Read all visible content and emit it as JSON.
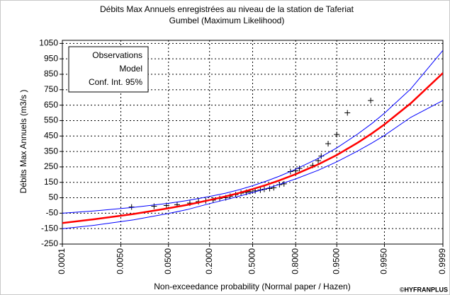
{
  "chart_data": {
    "type": "line",
    "title": "Débits Max Annuels enregistrées au niveau de la station de Taferiat",
    "subtitle": "Gumbel (Maximum Likelihood)",
    "x_label": "Non-exceedance probability (Normal paper / Hazen)",
    "y_label": "Débits Max Annuels (m3/s )",
    "credit": "©HYFRANPLUS",
    "x_scale": "normal-probability",
    "xlim": [
      0.0001,
      0.9999
    ],
    "xticks": [
      {
        "value": 0.0001,
        "label": "0.0001"
      },
      {
        "value": 0.005,
        "label": "0.0050"
      },
      {
        "value": 0.05,
        "label": "0.0500"
      },
      {
        "value": 0.2,
        "label": "0.2000"
      },
      {
        "value": 0.5,
        "label": "0.5000"
      },
      {
        "value": 0.8,
        "label": "0.8000"
      },
      {
        "value": 0.95,
        "label": "0.9500"
      },
      {
        "value": 0.995,
        "label": "0.9950"
      },
      {
        "value": 0.9999,
        "label": "0.9999"
      }
    ],
    "ylim": [
      -250,
      1070
    ],
    "yticks": [
      1050,
      950,
      850,
      750,
      650,
      550,
      450,
      350,
      250,
      150,
      50,
      -50,
      -150,
      -250
    ],
    "grid": true,
    "legend": "upper left",
    "x": [
      0.0001,
      0.001,
      0.01,
      0.05,
      0.1,
      0.2,
      0.3,
      0.4,
      0.5,
      0.6,
      0.7,
      0.8,
      0.9,
      0.95,
      0.98,
      0.99,
      0.995,
      0.999,
      0.9999
    ],
    "series": [
      {
        "name": "Observations",
        "color": "#000000",
        "marker": "plus",
        "x": [
          0.009,
          0.027,
          0.046,
          0.07,
          0.11,
          0.145,
          0.18,
          0.22,
          0.26,
          0.3,
          0.33,
          0.37,
          0.41,
          0.45,
          0.48,
          0.52,
          0.56,
          0.59,
          0.63,
          0.66,
          0.7,
          0.73,
          0.77,
          0.8,
          0.82,
          0.88,
          0.9,
          0.91,
          0.93,
          0.95,
          0.968,
          0.9895
        ],
        "values": [
          -10,
          -5,
          0,
          5,
          15,
          25,
          30,
          35,
          45,
          50,
          60,
          70,
          80,
          85,
          90,
          95,
          100,
          105,
          110,
          115,
          135,
          140,
          220,
          225,
          240,
          260,
          290,
          320,
          400,
          460,
          600,
          680
        ]
      },
      {
        "name": "Model",
        "color": "#ff0000",
        "marker": "line",
        "values": [
          -114,
          -89,
          -55,
          -18,
          4,
          35,
          59,
          82,
          106,
          132,
          163,
          203,
          266,
          327,
          407,
          466,
          525,
          662,
          858
        ]
      },
      {
        "name": "Conf. Int. 95%",
        "color": "#0000ff",
        "marker": "band",
        "upper": [
          -50,
          -35,
          -12,
          14,
          32,
          58,
          80,
          103,
          128,
          156,
          190,
          235,
          305,
          373,
          463,
          530,
          598,
          755,
          1005
        ],
        "lower": [
          -150,
          -128,
          -93,
          -52,
          -27,
          12,
          38,
          61,
          84,
          108,
          137,
          172,
          228,
          283,
          353,
          404,
          454,
          571,
          680
        ]
      }
    ]
  }
}
